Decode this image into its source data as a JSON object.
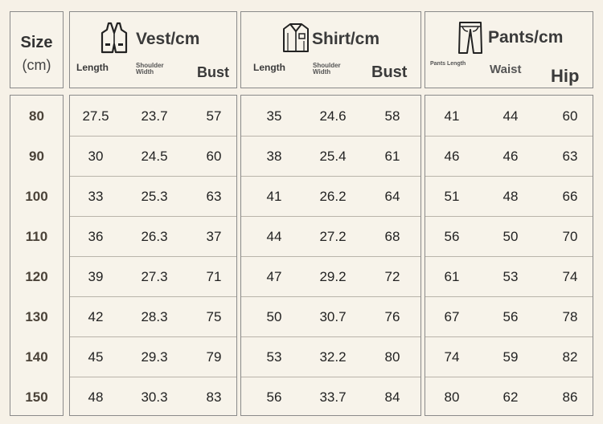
{
  "size_header": {
    "title": "Size",
    "unit": "(cm)"
  },
  "groups": [
    {
      "id": "vest",
      "title": "Vest/cm",
      "icon": "vest-icon",
      "columns": [
        "Length",
        "Shoulder Width",
        "Bust"
      ],
      "rows": [
        [
          "27.5",
          "23.7",
          "57"
        ],
        [
          "30",
          "24.5",
          "60"
        ],
        [
          "33",
          "25.3",
          "63"
        ],
        [
          "36",
          "26.3",
          "37"
        ],
        [
          "39",
          "27.3",
          "71"
        ],
        [
          "42",
          "28.3",
          "75"
        ],
        [
          "45",
          "29.3",
          "79"
        ],
        [
          "48",
          "30.3",
          "83"
        ]
      ]
    },
    {
      "id": "shirt",
      "title": "Shirt/cm",
      "icon": "shirt-icon",
      "columns": [
        "Length",
        "Shoulder Width",
        "Bust"
      ],
      "rows": [
        [
          "35",
          "24.6",
          "58"
        ],
        [
          "38",
          "25.4",
          "61"
        ],
        [
          "41",
          "26.2",
          "64"
        ],
        [
          "44",
          "27.2",
          "68"
        ],
        [
          "47",
          "29.2",
          "72"
        ],
        [
          "50",
          "30.7",
          "76"
        ],
        [
          "53",
          "32.2",
          "80"
        ],
        [
          "56",
          "33.7",
          "84"
        ]
      ]
    },
    {
      "id": "pants",
      "title": "Pants/cm",
      "icon": "pants-icon",
      "columns": [
        "Pants Length",
        "Waist",
        "Hip"
      ],
      "rows": [
        [
          "41",
          "44",
          "60"
        ],
        [
          "46",
          "46",
          "63"
        ],
        [
          "51",
          "48",
          "66"
        ],
        [
          "56",
          "50",
          "70"
        ],
        [
          "61",
          "53",
          "74"
        ],
        [
          "67",
          "56",
          "78"
        ],
        [
          "74",
          "59",
          "82"
        ],
        [
          "80",
          "62",
          "86"
        ]
      ]
    }
  ],
  "sizes": [
    "80",
    "90",
    "100",
    "110",
    "120",
    "130",
    "140",
    "150"
  ],
  "colors": {
    "background": "#f6f1e7",
    "border": "#8a8a8a",
    "size_text": "#4a4238"
  }
}
